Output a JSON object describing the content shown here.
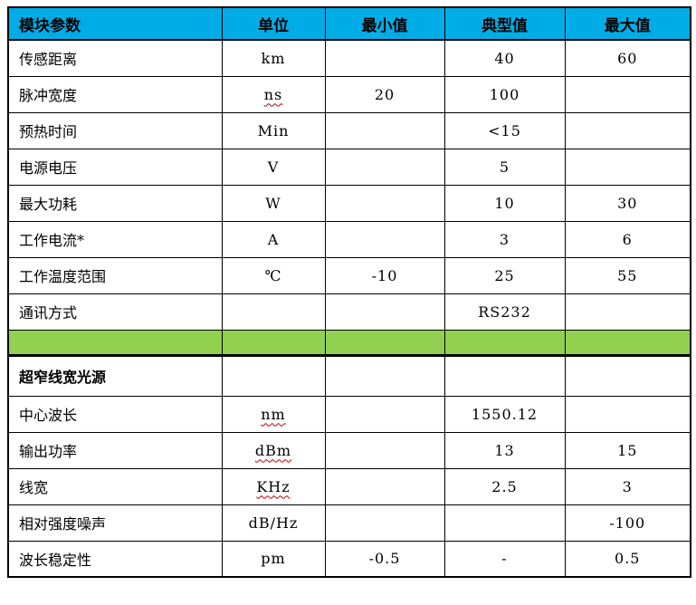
{
  "colors": {
    "header_bg": "#00ACE6",
    "separator_bg": "#92D050",
    "border": "#000000",
    "squiggle": "#C00000",
    "text": "#000000",
    "page_bg": "#FFFFFF"
  },
  "table": {
    "header": {
      "cells": [
        "模块参数",
        "单位",
        "最小值",
        "典型值",
        "最大值"
      ]
    },
    "cell_roles": [
      "param-cell",
      "unit-cell",
      "min-value-cell",
      "typical-value-cell",
      "max-value-cell"
    ],
    "rows": [
      {
        "param": "传感距离",
        "unit": "km",
        "min": "",
        "typ": "40",
        "max": "60"
      },
      {
        "param": "脉冲宽度",
        "unit": "ns",
        "unit_misspelled": true,
        "min": "20",
        "typ": "100",
        "max": ""
      },
      {
        "param": "预热时间",
        "unit": "Min",
        "min": "",
        "typ": "<15",
        "max": ""
      },
      {
        "param": "电源电压",
        "unit": "V",
        "min": "",
        "typ": "5",
        "max": ""
      },
      {
        "param": "最大功耗",
        "unit": "W",
        "min": "",
        "typ": "10",
        "max": "30"
      },
      {
        "param": "工作电流*",
        "unit": "A",
        "min": "",
        "typ": "3",
        "max": "6"
      },
      {
        "param": "工作温度范围",
        "unit": "℃",
        "min": "-10",
        "typ": "25",
        "max": "55"
      },
      {
        "param": "通讯方式",
        "unit": "",
        "min": "",
        "typ": "RS232",
        "max": ""
      },
      {
        "type": "separator",
        "param": "",
        "unit": "",
        "min": "",
        "typ": "",
        "max": ""
      },
      {
        "param": "超窄线宽光源",
        "section_header": true,
        "unit": "",
        "min": "",
        "typ": "",
        "max": ""
      },
      {
        "param": "中心波长",
        "unit": "nm",
        "unit_misspelled": true,
        "min": "",
        "typ": "1550.12",
        "max": ""
      },
      {
        "param": "输出功率",
        "unit": "dBm",
        "unit_misspelled": true,
        "min": "",
        "typ": "13",
        "max": "15"
      },
      {
        "param": "线宽",
        "unit": "KHz",
        "unit_misspelled": true,
        "min": "",
        "typ": "2.5",
        "max": "3"
      },
      {
        "param": "相对强度噪声",
        "unit": "dB/Hz",
        "min": "",
        "typ": "",
        "max": "-100"
      },
      {
        "param": "波长稳定性",
        "unit": "pm",
        "min": "-0.5",
        "typ": "-",
        "max": "0.5"
      }
    ]
  }
}
